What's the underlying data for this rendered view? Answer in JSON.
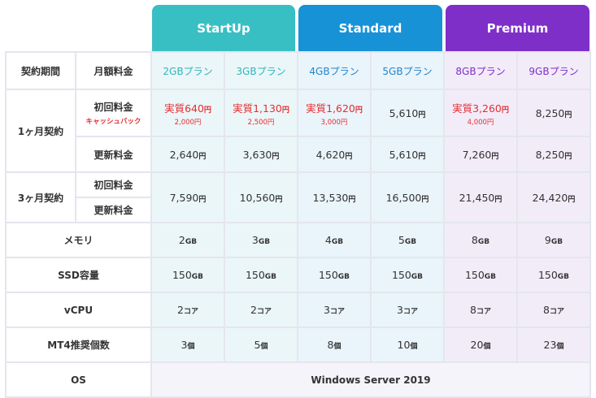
{
  "plans": [
    {
      "name": "StartUp",
      "color": "#38bfc4"
    },
    {
      "name": "Standard",
      "color": "#1892d6"
    },
    {
      "name": "Premium",
      "color": "#7e2fc8"
    }
  ],
  "header_row": {
    "period_label": "契約期間",
    "monthly_label": "月額料金",
    "sub_plans": [
      "2GBプラン",
      "3GBプラン",
      "4GBプラン",
      "5GBプラン",
      "8GBプラン",
      "9GBプラン"
    ],
    "sub_plan_colors": [
      "#2fb6bd",
      "#2fb6bd",
      "#1e86cc",
      "#1e86cc",
      "#7e2fc8",
      "#7e2fc8"
    ]
  },
  "one_month": {
    "label": "1ヶ月契約",
    "initial_label": "初回料金",
    "cashback_label": "キャッシュバック",
    "initial": [
      {
        "main": "実質640",
        "unit": "円",
        "sub": "2,000円",
        "red": true
      },
      {
        "main": "実質1,130",
        "unit": "円",
        "sub": "2,500円",
        "red": true
      },
      {
        "main": "実質1,620",
        "unit": "円",
        "sub": "3,000円",
        "red": true
      },
      {
        "main": "5,610",
        "unit": "円",
        "sub": "",
        "red": false
      },
      {
        "main": "実質3,260",
        "unit": "円",
        "sub": "4,000円",
        "red": true
      },
      {
        "main": "8,250",
        "unit": "円",
        "sub": "",
        "red": false
      }
    ],
    "renewal_label": "更新料金",
    "renewal": [
      "2,640",
      "3,630",
      "4,620",
      "5,610",
      "7,260",
      "8,250"
    ],
    "yen": "円"
  },
  "three_month": {
    "label": "3ヶ月契約",
    "initial_label": "初回料金",
    "renewal_label": "更新料金",
    "values": [
      "7,590",
      "10,560",
      "13,530",
      "16,500",
      "21,450",
      "24,420"
    ],
    "yen": "円"
  },
  "memory": {
    "label": "メモリ",
    "values": [
      "2",
      "3",
      "4",
      "5",
      "8",
      "9"
    ],
    "unit": "GB"
  },
  "ssd": {
    "label": "SSD容量",
    "values": [
      "150",
      "150",
      "150",
      "150",
      "150",
      "150"
    ],
    "unit": "GB"
  },
  "vcpu": {
    "label": "vCPU",
    "values": [
      "2",
      "2",
      "3",
      "3",
      "8",
      "8"
    ],
    "unit": "コア"
  },
  "mt4": {
    "label": "MT4推奨個数",
    "values": [
      "3",
      "5",
      "8",
      "10",
      "20",
      "23"
    ],
    "unit": "個"
  },
  "os": {
    "label": "OS",
    "value": "Windows Server 2019"
  }
}
